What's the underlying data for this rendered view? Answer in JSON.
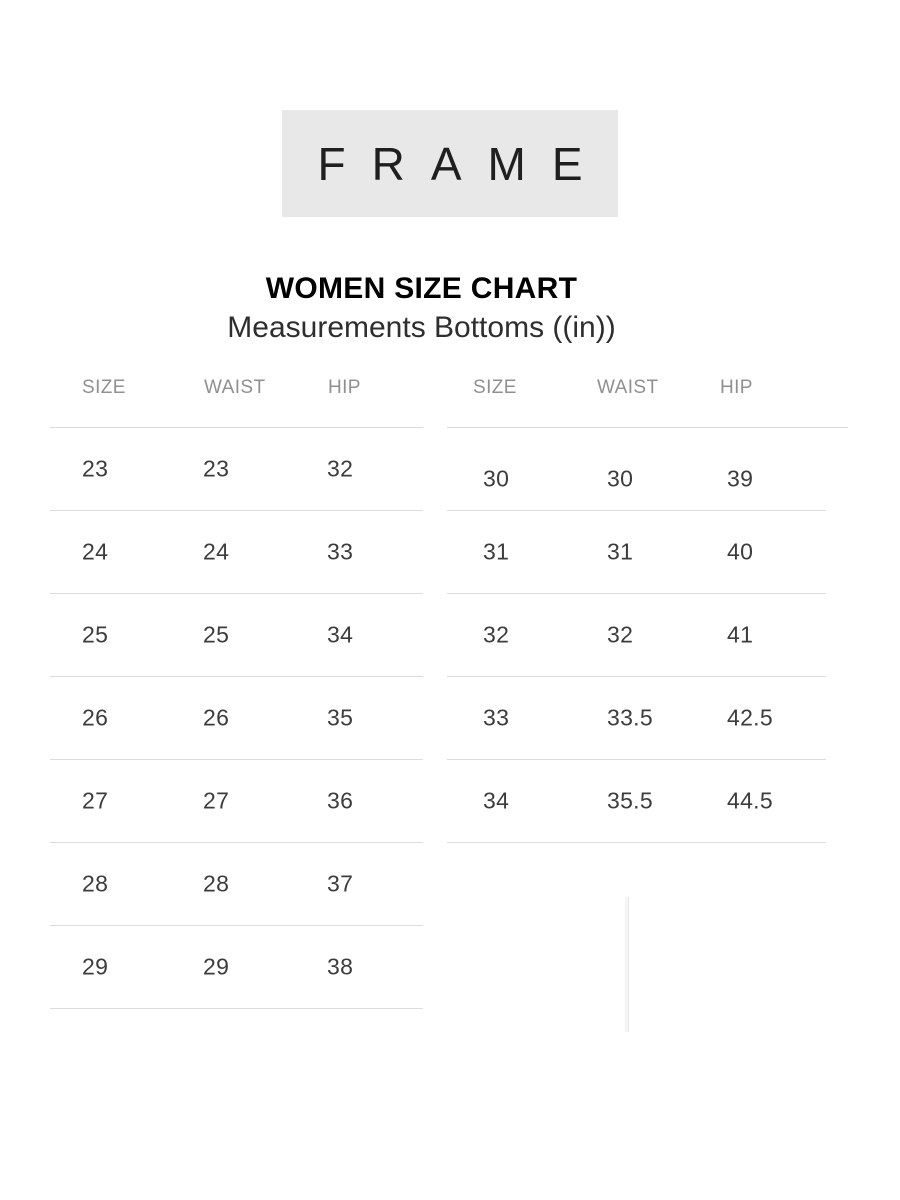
{
  "logo": {
    "text": "FRAME",
    "background": "#e8e8e8",
    "color": "#1f1f1f"
  },
  "heading": {
    "title": "WOMEN SIZE CHART",
    "subtitle": "Measurements Bottoms ((in))"
  },
  "tables": {
    "left": {
      "headers": [
        "SIZE",
        "WAIST",
        "HIP"
      ],
      "rows": [
        [
          "23",
          "23",
          "32"
        ],
        [
          "24",
          "24",
          "33"
        ],
        [
          "25",
          "25",
          "34"
        ],
        [
          "26",
          "26",
          "35"
        ],
        [
          "27",
          "27",
          "36"
        ],
        [
          "28",
          "28",
          "37"
        ],
        [
          "29",
          "29",
          "38"
        ]
      ]
    },
    "right": {
      "headers": [
        "SIZE",
        "WAIST",
        "HIP"
      ],
      "rows": [
        [
          "30",
          "30",
          "39"
        ],
        [
          "31",
          "31",
          "40"
        ],
        [
          "32",
          "32",
          "41"
        ],
        [
          "33",
          "33.5",
          "42.5"
        ],
        [
          "34",
          "35.5",
          "44.5"
        ]
      ]
    }
  },
  "colors": {
    "header_text": "#909090",
    "cell_text": "#3c3c3c",
    "divider": "#dcdcdc",
    "logo_background": "#e8e8e8"
  }
}
